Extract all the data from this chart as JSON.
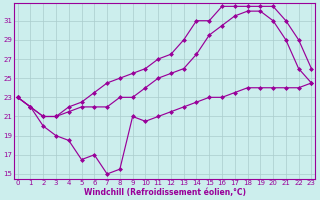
{
  "xlabel": "Windchill (Refroidissement éolien,°C)",
  "background_color": "#cceeed",
  "line_color": "#990099",
  "grid_color": "#aacccc",
  "xlim_min": -0.3,
  "xlim_max": 23.3,
  "ylim_min": 14.5,
  "ylim_max": 32.8,
  "xticks": [
    0,
    1,
    2,
    3,
    4,
    5,
    6,
    7,
    8,
    9,
    10,
    11,
    12,
    13,
    14,
    15,
    16,
    17,
    18,
    19,
    20,
    21,
    22,
    23
  ],
  "yticks": [
    15,
    17,
    19,
    21,
    23,
    25,
    27,
    29,
    31
  ],
  "lines": [
    {
      "x": [
        0,
        1,
        2,
        3,
        4,
        5,
        6,
        7,
        8,
        9,
        10,
        11,
        12,
        13,
        14,
        15,
        16,
        17,
        18,
        19,
        20,
        21,
        22,
        23
      ],
      "y": [
        23,
        22,
        20,
        19,
        18.5,
        16.5,
        17,
        15,
        15.5,
        21,
        20.5,
        21,
        21.5,
        22,
        22.5,
        23,
        23,
        23.5,
        24,
        24,
        24,
        24,
        24,
        24.5
      ]
    },
    {
      "x": [
        0,
        1,
        2,
        3,
        4,
        5,
        6,
        7,
        8,
        9,
        10,
        11,
        12,
        13,
        14,
        15,
        16,
        17,
        18,
        19,
        20,
        21,
        22,
        23
      ],
      "y": [
        23,
        22,
        21,
        21,
        21.5,
        22,
        22,
        22,
        23,
        23,
        24,
        25,
        25.5,
        26,
        27.5,
        29.5,
        30.5,
        31.5,
        32,
        32,
        31,
        29,
        26,
        24.5
      ]
    },
    {
      "x": [
        0,
        1,
        2,
        3,
        4,
        5,
        6,
        7,
        8,
        9,
        10,
        11,
        12,
        13,
        14,
        15,
        16,
        17,
        18,
        19,
        20,
        21,
        22,
        23
      ],
      "y": [
        23,
        22,
        21,
        21,
        22,
        22.5,
        23.5,
        24.5,
        25,
        25.5,
        26,
        27,
        27.5,
        29,
        31,
        31,
        32.5,
        32.5,
        32.5,
        32.5,
        32.5,
        31,
        29,
        26
      ]
    }
  ],
  "marker": "D",
  "markersize": 2.0,
  "linewidth": 0.85,
  "tick_labelsize": 5.0,
  "xlabel_fontsize": 5.5
}
